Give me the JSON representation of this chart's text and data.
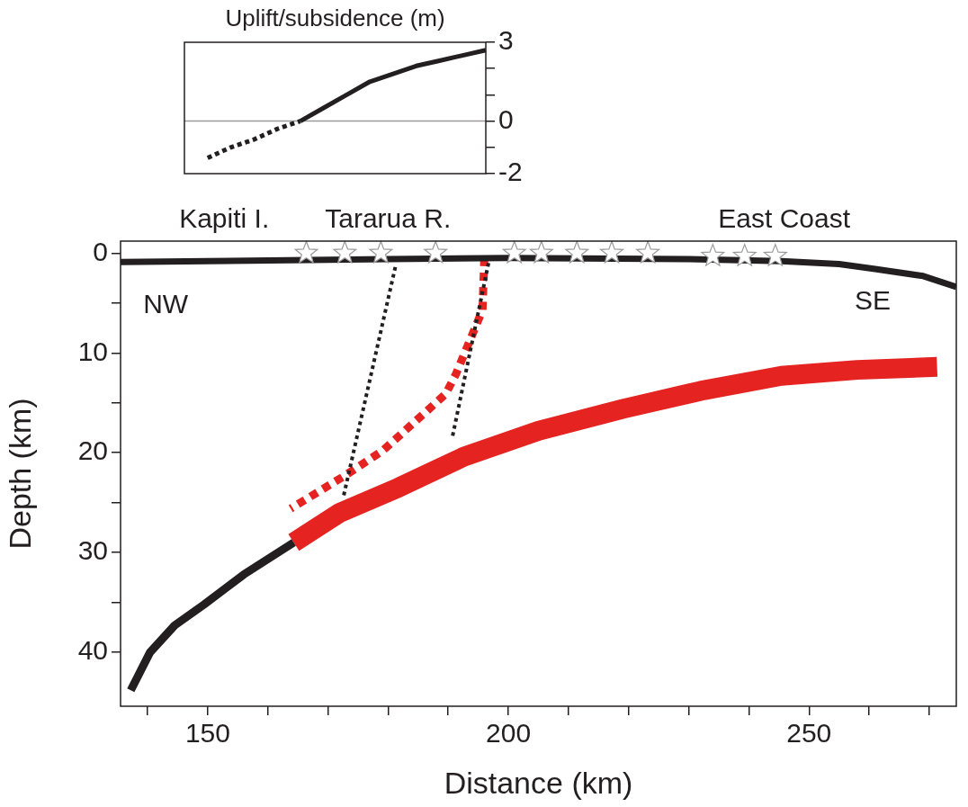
{
  "chart_data": [
    {
      "type": "line",
      "title": "Uplift/subsidence (m)",
      "categories": [
        null,
        null,
        null,
        null,
        null,
        null,
        null,
        null,
        null,
        null,
        null,
        null,
        null,
        null
      ],
      "tick_labels": "y",
      "ylim": [
        -2,
        3
      ],
      "yticks": [
        -2,
        {
          "value": -1,
          "label": null
        },
        0,
        {
          "value": 1,
          "label": null
        },
        {
          "value": 2,
          "label": null
        },
        3
      ],
      "grid": false,
      "legend": false,
      "ref_lines": [
        {
          "axis": "y",
          "value": 0,
          "color": "#9a9a9a"
        }
      ],
      "series": [
        {
          "color": "#231f20",
          "line_style": "dotted",
          "values": [
            null,
            -1.4,
            -1.0,
            -0.7,
            -0.3,
            0,
            null,
            null,
            null,
            null,
            null,
            null,
            null,
            null
          ]
        },
        {
          "color": "#231f20",
          "line_style": "solid",
          "values": [
            null,
            null,
            null,
            null,
            null,
            0,
            0.5,
            1.0,
            1.5,
            1.8,
            2.1,
            2.3,
            2.5,
            2.7
          ]
        }
      ]
    },
    {
      "type": "line",
      "xlabel": "Distance (km)",
      "ylabel": "Depth (km)",
      "xlim": [
        135.5,
        274.5
      ],
      "xticks": [
        {
          "value": 140,
          "label": null
        },
        150,
        {
          "value": 160,
          "label": null
        },
        {
          "value": 170,
          "label": null
        },
        {
          "value": 180,
          "label": null
        },
        {
          "value": 190,
          "label": null
        },
        200,
        {
          "value": 210,
          "label": null
        },
        {
          "value": 220,
          "label": null
        },
        {
          "value": 230,
          "label": null
        },
        {
          "value": 240,
          "label": null
        },
        250,
        {
          "value": 260,
          "label": null
        },
        {
          "value": 270,
          "label": null
        }
      ],
      "ylim": [
        45.4,
        -1.2
      ],
      "yticks": [
        0,
        {
          "value": 5,
          "label": null
        },
        10,
        {
          "value": 15,
          "label": null
        },
        20,
        {
          "value": 25,
          "label": null
        },
        30,
        {
          "value": 35,
          "label": null
        },
        40
      ],
      "grid": false,
      "legend": false,
      "annotations": [
        "Kapiti I.",
        "Tararua R.",
        "East Coast",
        "NW",
        "SE"
      ],
      "series": [
        {
          "color": "#231f20",
          "line_style": "solid",
          "x": [
            135.5,
            150,
            180,
            200,
            230,
            245.4,
            255,
            261,
            269,
            274.5
          ],
          "values": [
            0.9,
            0.8,
            0.6,
            0.5,
            0.6,
            0.8,
            1.1,
            1.6,
            2.3,
            3.4
          ]
        },
        {
          "color": "#231f20",
          "line_style": "solid",
          "x": [
            137.2,
            140.4,
            144.5,
            149.4,
            156,
            164.3
          ],
          "values": [
            43.8,
            40,
            37.3,
            35.2,
            32.2,
            29
          ]
        },
        {
          "color": "#e52320",
          "line_style": "solid",
          "x": [
            164.3,
            172,
            181.7,
            192.6,
            205,
            219.1,
            232,
            245.4,
            258,
            271.3
          ],
          "values": [
            29,
            26,
            23.5,
            20.4,
            17.8,
            15.6,
            13.8,
            12.3,
            11.7,
            11.4
          ]
        },
        {
          "color": "#231f20",
          "line_style": "dotted",
          "x": [
            181.2,
            172.5
          ],
          "values": [
            1.4,
            24.6
          ]
        },
        {
          "color": "#231f20",
          "line_style": "dotted",
          "x": [
            196.7,
            190.7
          ],
          "values": [
            1,
            18.4
          ]
        },
        {
          "color": "#e52320",
          "line_style": "dotted",
          "x": [
            196,
            195.7,
            191.3,
            189.6,
            179.1,
            172.8,
            163.8
          ],
          "values": [
            0.5,
            5.7,
            12.1,
            14.1,
            19.8,
            22.3,
            25.6
          ]
        },
        {
          "type": "scatter",
          "marker": "star",
          "color": "#ffffff",
          "x": [
            166.4,
            172.8,
            178.8,
            187.9,
            201,
            205.5,
            211.4,
            217.2,
            223.2,
            234,
            239.3,
            244.4
          ],
          "values": [
            0,
            0,
            0,
            0,
            0,
            0,
            0,
            0,
            0,
            0.3,
            0.3,
            0.3
          ]
        }
      ]
    }
  ]
}
